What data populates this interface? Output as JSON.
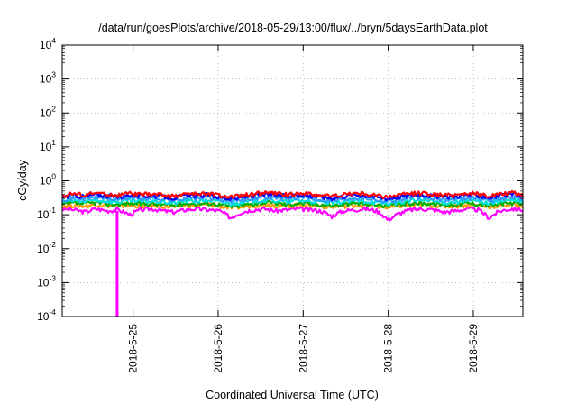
{
  "chart_data": {
    "type": "line",
    "title": "/data/run/goesPlots/archive/2018-05-29/13:00/flux/../bryn/5daysEarthData.plot",
    "xlabel": "Coordinated Universal Time (UTC)",
    "ylabel": "cGy/day",
    "yscale": "log",
    "ylim": [
      0.0001,
      10000
    ],
    "xlim": [
      "2018-05-24T04:00",
      "2018-05-29T14:00"
    ],
    "grid": true,
    "y_ticks": [
      {
        "base": "10",
        "exp": "-4",
        "value": 0.0001
      },
      {
        "base": "10",
        "exp": "-3",
        "value": 0.001
      },
      {
        "base": "10",
        "exp": "-2",
        "value": 0.01
      },
      {
        "base": "10",
        "exp": "-1",
        "value": 0.1
      },
      {
        "base": "10",
        "exp": "0",
        "value": 1
      },
      {
        "base": "10",
        "exp": "1",
        "value": 10
      },
      {
        "base": "10",
        "exp": "2",
        "value": 100
      },
      {
        "base": "10",
        "exp": "3",
        "value": 1000
      },
      {
        "base": "10",
        "exp": "4",
        "value": 10000
      }
    ],
    "x_ticks": [
      {
        "label": "2018-5-25",
        "value": "2018-05-25T00:00"
      },
      {
        "label": "2018-5-26",
        "value": "2018-05-26T00:00"
      },
      {
        "label": "2018-5-27",
        "value": "2018-05-27T00:00"
      },
      {
        "label": "2018-5-28",
        "value": "2018-05-28T00:00"
      },
      {
        "label": "2018-5-29",
        "value": "2018-05-29T00:00"
      }
    ],
    "series": [
      {
        "color": "#ff0000",
        "values": [
          0.36,
          0.42,
          0.38,
          0.44,
          0.4,
          0.37,
          0.43,
          0.39,
          0.41,
          0.38,
          0.35,
          0.42,
          0.4,
          0.43,
          0.37,
          0.33,
          0.36,
          0.41,
          0.45,
          0.42,
          0.39,
          0.44,
          0.4,
          0.38,
          0.35,
          0.39,
          0.43,
          0.41,
          0.37,
          0.34,
          0.38,
          0.42,
          0.44,
          0.4,
          0.37,
          0.39,
          0.43,
          0.41,
          0.36,
          0.4,
          0.44,
          0.38
        ]
      },
      {
        "color": "#0000ff",
        "values": [
          0.33,
          0.38,
          0.34,
          0.4,
          0.36,
          0.33,
          0.39,
          0.35,
          0.37,
          0.34,
          0.31,
          0.38,
          0.36,
          0.39,
          0.33,
          0.29,
          0.32,
          0.37,
          0.41,
          0.38,
          0.35,
          0.4,
          0.36,
          0.34,
          0.31,
          0.35,
          0.39,
          0.37,
          0.33,
          0.3,
          0.34,
          0.38,
          0.4,
          0.36,
          0.33,
          0.35,
          0.39,
          0.37,
          0.32,
          0.36,
          0.4,
          0.34
        ]
      },
      {
        "color": "#3399ff",
        "values": [
          0.28,
          0.32,
          0.29,
          0.33,
          0.3,
          0.28,
          0.32,
          0.29,
          0.31,
          0.29,
          0.26,
          0.32,
          0.3,
          0.33,
          0.28,
          0.25,
          0.27,
          0.31,
          0.34,
          0.32,
          0.29,
          0.33,
          0.3,
          0.29,
          0.26,
          0.29,
          0.32,
          0.31,
          0.28,
          0.25,
          0.28,
          0.32,
          0.33,
          0.3,
          0.28,
          0.29,
          0.32,
          0.31,
          0.27,
          0.3,
          0.33,
          0.29
        ]
      },
      {
        "color": "#00dddd",
        "values": [
          0.24,
          0.26,
          0.24,
          0.27,
          0.25,
          0.24,
          0.26,
          0.24,
          0.25,
          0.24,
          0.22,
          0.26,
          0.25,
          0.27,
          0.24,
          0.21,
          0.23,
          0.25,
          0.27,
          0.26,
          0.24,
          0.27,
          0.25,
          0.24,
          0.22,
          0.24,
          0.26,
          0.25,
          0.23,
          0.21,
          0.23,
          0.26,
          0.27,
          0.25,
          0.23,
          0.24,
          0.26,
          0.25,
          0.22,
          0.25,
          0.27,
          0.24
        ]
      },
      {
        "color": "#00b000",
        "values": [
          0.2,
          0.22,
          0.21,
          0.23,
          0.21,
          0.2,
          0.22,
          0.21,
          0.21,
          0.2,
          0.19,
          0.22,
          0.21,
          0.22,
          0.2,
          0.18,
          0.19,
          0.21,
          0.23,
          0.22,
          0.2,
          0.22,
          0.21,
          0.2,
          0.19,
          0.2,
          0.22,
          0.21,
          0.2,
          0.18,
          0.2,
          0.22,
          0.22,
          0.21,
          0.2,
          0.2,
          0.22,
          0.21,
          0.19,
          0.21,
          0.22,
          0.2
        ]
      },
      {
        "color": "#ff9900",
        "values": [
          0.18,
          0.19,
          0.18,
          0.2,
          0.19,
          0.18,
          0.19,
          0.18,
          0.19,
          0.18,
          0.17,
          0.19,
          0.19,
          0.2,
          0.18,
          0.16,
          0.17,
          0.19,
          0.2,
          0.19,
          0.18,
          0.2,
          0.19,
          0.18,
          0.17,
          0.18,
          0.19,
          0.19,
          0.18,
          0.16,
          0.18,
          0.19,
          0.2,
          0.19,
          0.18,
          0.18,
          0.19,
          0.19,
          0.17,
          0.19,
          0.2,
          0.18
        ]
      },
      {
        "color": "#ff00ff",
        "values": [
          0.15,
          0.14,
          0.12,
          0.15,
          0.13,
          0.14,
          0.1,
          0.14,
          0.15,
          0.13,
          0.12,
          0.14,
          0.15,
          0.14,
          0.13,
          0.08,
          0.12,
          0.14,
          0.15,
          0.13,
          0.14,
          0.15,
          0.14,
          0.13,
          0.09,
          0.13,
          0.14,
          0.15,
          0.13,
          0.07,
          0.11,
          0.14,
          0.15,
          0.14,
          0.12,
          0.13,
          0.15,
          0.14,
          0.08,
          0.13,
          0.15,
          0.14
        ]
      }
    ],
    "dropout": {
      "x": "2018-05-24T19:30",
      "min": 0.0001
    }
  }
}
